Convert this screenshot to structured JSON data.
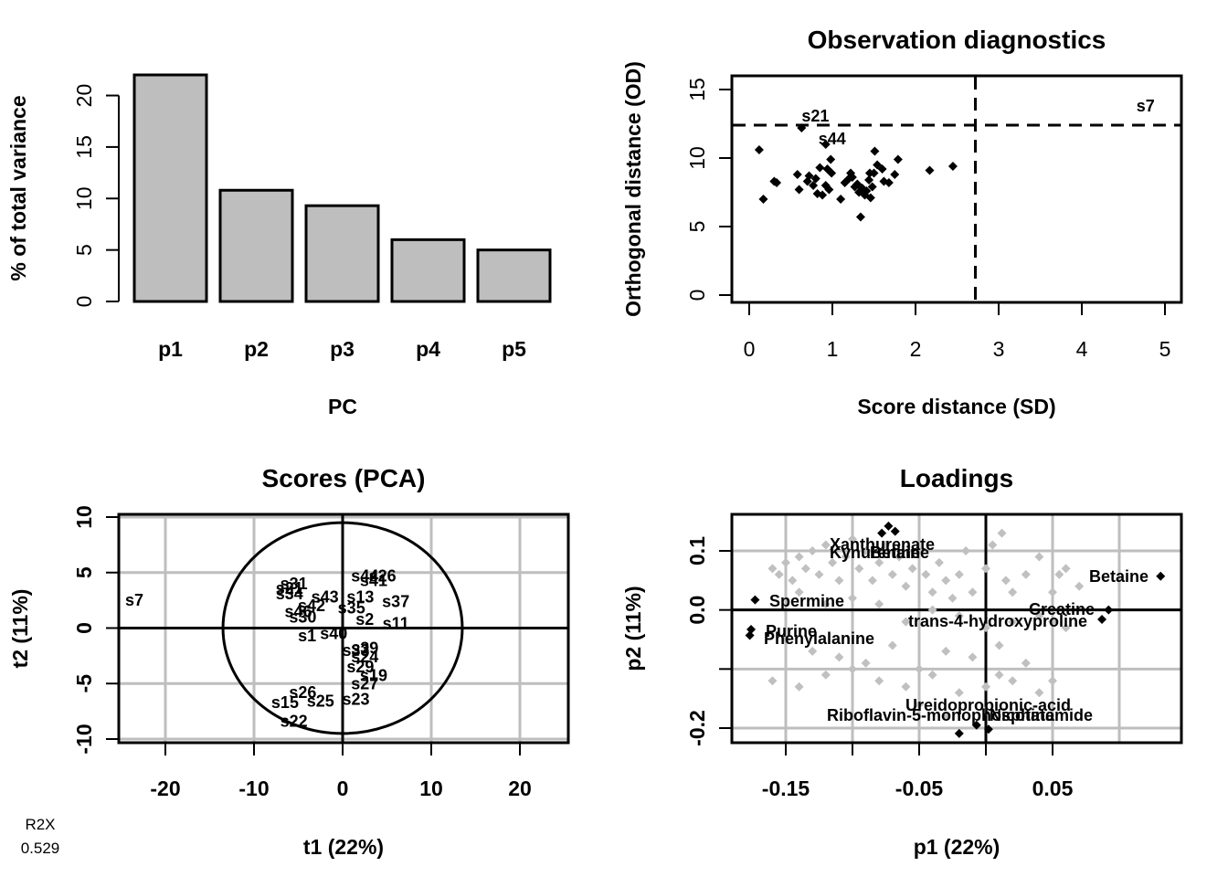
{
  "chart_data": [
    {
      "type": "bar",
      "title": "",
      "xlabel": "PC",
      "ylabel": "% of total variance",
      "categories": [
        "p1",
        "p2",
        "p3",
        "p4",
        "p5"
      ],
      "values": [
        22.0,
        10.8,
        9.3,
        6.0,
        5.0
      ],
      "ylim": [
        0,
        22
      ],
      "yticks": [
        0,
        5,
        10,
        15,
        20
      ],
      "bar_color": "#bebebe"
    },
    {
      "type": "scatter",
      "title": "Observation diagnostics",
      "xlabel": "Score distance (SD)",
      "ylabel": "Orthogonal distance (OD)",
      "xlim": [
        0,
        5
      ],
      "ylim": [
        0,
        15
      ],
      "xticks": [
        0,
        1,
        2,
        3,
        4,
        5
      ],
      "yticks": [
        0,
        5,
        10,
        15
      ],
      "thresholds": {
        "sd": 2.72,
        "od": 12.4
      },
      "points": [
        [
          0.12,
          10.6
        ],
        [
          0.17,
          7.0
        ],
        [
          0.3,
          8.3
        ],
        [
          0.33,
          8.2
        ],
        [
          0.58,
          8.8
        ],
        [
          0.6,
          7.7
        ],
        [
          0.7,
          8.3
        ],
        [
          0.72,
          8.7
        ],
        [
          0.77,
          8.0
        ],
        [
          0.8,
          8.5
        ],
        [
          0.82,
          7.4
        ],
        [
          0.85,
          9.3
        ],
        [
          0.88,
          7.3
        ],
        [
          0.92,
          8.0
        ],
        [
          0.94,
          9.2
        ],
        [
          0.96,
          7.7
        ],
        [
          0.98,
          9.9
        ],
        [
          0.99,
          8.9
        ],
        [
          1.1,
          7.0
        ],
        [
          1.15,
          8.2
        ],
        [
          1.2,
          8.5
        ],
        [
          1.22,
          8.9
        ],
        [
          1.24,
          8.6
        ],
        [
          1.27,
          7.9
        ],
        [
          1.3,
          8.1
        ],
        [
          1.32,
          7.5
        ],
        [
          1.34,
          5.7
        ],
        [
          1.36,
          7.8
        ],
        [
          1.39,
          7.3
        ],
        [
          1.41,
          7.6
        ],
        [
          1.44,
          8.4
        ],
        [
          1.45,
          8.9
        ],
        [
          1.46,
          7.1
        ],
        [
          1.48,
          7.9
        ],
        [
          1.5,
          8.9
        ],
        [
          1.51,
          10.5
        ],
        [
          1.54,
          9.5
        ],
        [
          1.6,
          9.2
        ],
        [
          1.62,
          8.3
        ],
        [
          1.68,
          8.2
        ],
        [
          1.75,
          8.8
        ],
        [
          1.79,
          9.9
        ],
        [
          2.17,
          9.1
        ],
        [
          2.45,
          9.4
        ],
        [
          0.92,
          11.0
        ],
        [
          0.63,
          12.2
        ]
      ],
      "labeled_points": [
        {
          "label": "s21",
          "x": 0.63,
          "y": 12.2
        },
        {
          "label": "s44",
          "x": 0.92,
          "y": 11.0
        },
        {
          "label": "s7",
          "x": 5.25,
          "y": 12.8
        }
      ]
    },
    {
      "type": "scatter",
      "title": "Scores (PCA)",
      "xlabel": "t1 (22%)",
      "ylabel": "t2 (11%)",
      "xlim": [
        -25,
        25
      ],
      "ylim": [
        -10,
        10
      ],
      "xticks": [
        -20,
        -10,
        0,
        10,
        20
      ],
      "yticks": [
        -10,
        -5,
        0,
        5,
        10
      ],
      "ellipse": {
        "rx": 13.5,
        "ry": 9.5
      },
      "points": [
        {
          "label": "s7",
          "x": -23.5,
          "y": 2.5
        },
        {
          "label": "s31",
          "x": -5.5,
          "y": 4.0
        },
        {
          "label": "s21",
          "x": -6.0,
          "y": 3.6
        },
        {
          "label": "s34",
          "x": -6.0,
          "y": 3.1
        },
        {
          "label": "s43",
          "x": -2.0,
          "y": 2.8
        },
        {
          "label": "s13",
          "x": 2.0,
          "y": 2.8
        },
        {
          "label": "s42",
          "x": -3.5,
          "y": 2.0
        },
        {
          "label": "s35",
          "x": 1.0,
          "y": 1.8
        },
        {
          "label": "s37",
          "x": 6.0,
          "y": 2.4
        },
        {
          "label": "s46",
          "x": -5.0,
          "y": 1.5
        },
        {
          "label": "s30",
          "x": -4.5,
          "y": 1.0
        },
        {
          "label": "s2",
          "x": 2.5,
          "y": 0.8
        },
        {
          "label": "s11",
          "x": 6.0,
          "y": 0.4
        },
        {
          "label": "s1",
          "x": -4.0,
          "y": -0.7
        },
        {
          "label": "s40",
          "x": -1.0,
          "y": -0.5
        },
        {
          "label": "s26",
          "x": 4.5,
          "y": 4.7
        },
        {
          "label": "s44",
          "x": 2.5,
          "y": 4.7
        },
        {
          "label": "s41",
          "x": 3.5,
          "y": 4.3
        },
        {
          "label": "s39",
          "x": 2.5,
          "y": -1.8
        },
        {
          "label": "s33",
          "x": 1.5,
          "y": -2.0
        },
        {
          "label": "s24",
          "x": 2.5,
          "y": -2.6
        },
        {
          "label": "s29",
          "x": 2.0,
          "y": -3.5
        },
        {
          "label": "s19",
          "x": 3.5,
          "y": -4.3
        },
        {
          "label": "s27",
          "x": 2.5,
          "y": -5.0
        },
        {
          "label": "s26",
          "x": -4.5,
          "y": -5.8
        },
        {
          "label": "s15",
          "x": -6.5,
          "y": -6.7
        },
        {
          "label": "s25",
          "x": -2.5,
          "y": -6.6
        },
        {
          "label": "s23",
          "x": 1.5,
          "y": -6.4
        },
        {
          "label": "s22",
          "x": -5.5,
          "y": -8.4
        }
      ]
    },
    {
      "type": "scatter",
      "title": "Loadings",
      "xlabel": "p1 (22%)",
      "ylabel": "p2 (11%)",
      "xlim": [
        -0.2,
        0.14
      ],
      "ylim": [
        -0.22,
        0.15
      ],
      "xticks": [
        -0.15,
        -0.05,
        0.05
      ],
      "xticklabels": [
        "-0.15",
        "-0.05",
        "0.05"
      ],
      "yticks": [
        -0.2,
        -0.1,
        0.0,
        0.1
      ],
      "yticklabels": [
        "-0.2",
        "",
        "0.0",
        "0.1"
      ],
      "highlight_color": "#000000",
      "background_color": "#c0c0c0",
      "labeled_points": [
        {
          "label": "Xanthurenate",
          "x": -0.08,
          "y": 0.13
        },
        {
          "label": "Kynurenine",
          "x": -0.073,
          "y": 0.14
        },
        {
          "label": "Betaine",
          "x": -0.068,
          "y": 0.135
        },
        {
          "label": "Betaine",
          "x": 0.131,
          "y": 0.057
        },
        {
          "label": "Spermine",
          "x": -0.173,
          "y": 0.017
        },
        {
          "label": "Creatine",
          "x": 0.092,
          "y": 0.0
        },
        {
          "label": "trans-4-hydroxyproline",
          "x": 0.087,
          "y": -0.016
        },
        {
          "label": "Purine",
          "x": -0.175,
          "y": -0.033
        },
        {
          "label": "Phenylalanine",
          "x": -0.176,
          "y": -0.043
        },
        {
          "label": "Ureidopropionic-acid",
          "x": -0.008,
          "y": -0.19
        },
        {
          "label": "Riboflavin-5-monophosphate",
          "x": -0.02,
          "y": -0.208
        },
        {
          "label": "Nicotinamide",
          "x": 0.002,
          "y": -0.2
        }
      ],
      "points": [
        [
          -0.16,
          0.07
        ],
        [
          -0.155,
          0.06
        ],
        [
          -0.15,
          0.08
        ],
        [
          -0.145,
          0.05
        ],
        [
          -0.14,
          0.09
        ],
        [
          -0.135,
          0.07
        ],
        [
          -0.13,
          0.1
        ],
        [
          -0.125,
          0.06
        ],
        [
          -0.12,
          0.11
        ],
        [
          -0.115,
          0.08
        ],
        [
          -0.11,
          0.05
        ],
        [
          -0.105,
          0.09
        ],
        [
          -0.1,
          0.12
        ],
        [
          -0.095,
          0.07
        ],
        [
          -0.09,
          0.1
        ],
        [
          -0.085,
          0.05
        ],
        [
          -0.08,
          0.08
        ],
        [
          -0.075,
          0.11
        ],
        [
          -0.07,
          0.06
        ],
        [
          -0.065,
          0.09
        ],
        [
          -0.06,
          0.04
        ],
        [
          -0.055,
          0.07
        ],
        [
          -0.05,
          0.1
        ],
        [
          -0.045,
          0.06
        ],
        [
          -0.04,
          0.03
        ],
        [
          -0.035,
          0.08
        ],
        [
          -0.03,
          0.05
        ],
        [
          -0.025,
          0.02
        ],
        [
          -0.02,
          0.06
        ],
        [
          -0.015,
          0.1
        ],
        [
          -0.01,
          0.03
        ],
        [
          0.0,
          0.07
        ],
        [
          0.005,
          0.11
        ],
        [
          0.012,
          0.13
        ],
        [
          0.015,
          0.05
        ],
        [
          0.02,
          0.03
        ],
        [
          0.03,
          0.06
        ],
        [
          0.04,
          0.09
        ],
        [
          0.05,
          0.03
        ],
        [
          0.055,
          0.06
        ],
        [
          0.06,
          0.07
        ],
        [
          0.07,
          0.04
        ],
        [
          -0.14,
          0.03
        ],
        [
          -0.12,
          0.01
        ],
        [
          -0.1,
          0.02
        ],
        [
          -0.08,
          0.01
        ],
        [
          -0.06,
          -0.02
        ],
        [
          -0.04,
          0.0
        ],
        [
          -0.02,
          -0.01
        ],
        [
          0.0,
          -0.03
        ],
        [
          0.02,
          -0.02
        ],
        [
          0.04,
          -0.01
        ],
        [
          0.05,
          -0.02
        ],
        [
          0.06,
          -0.03
        ],
        [
          -0.15,
          -0.05
        ],
        [
          -0.13,
          -0.07
        ],
        [
          -0.11,
          -0.08
        ],
        [
          -0.09,
          -0.09
        ],
        [
          -0.07,
          -0.06
        ],
        [
          -0.05,
          -0.1
        ],
        [
          -0.03,
          -0.07
        ],
        [
          -0.01,
          -0.08
        ],
        [
          0.01,
          -0.11
        ],
        [
          0.03,
          -0.09
        ],
        [
          0.05,
          -0.12
        ],
        [
          -0.16,
          -0.12
        ],
        [
          -0.14,
          -0.13
        ],
        [
          -0.12,
          -0.11
        ],
        [
          -0.1,
          -0.1
        ],
        [
          -0.08,
          -0.12
        ],
        [
          -0.06,
          -0.13
        ],
        [
          -0.04,
          -0.11
        ],
        [
          -0.02,
          -0.14
        ],
        [
          0.0,
          -0.13
        ],
        [
          0.02,
          -0.12
        ],
        [
          0.04,
          -0.14
        ],
        [
          -0.05,
          -0.16
        ],
        [
          -0.03,
          -0.18
        ],
        [
          0.0,
          -0.17
        ],
        [
          0.01,
          -0.06
        ]
      ]
    }
  ],
  "footnote": {
    "label": "R2X",
    "value": "0.529"
  }
}
